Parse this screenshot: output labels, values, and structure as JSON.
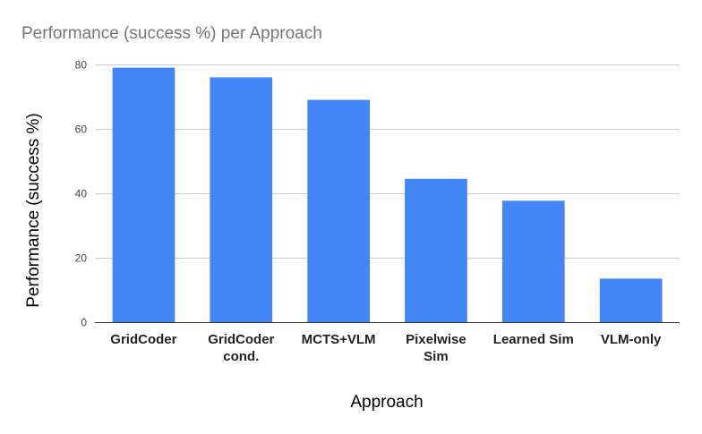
{
  "chart_data": {
    "type": "bar",
    "title": "Performance (success %) per Approach",
    "xlabel": "Approach",
    "ylabel": "Performance (success %)",
    "categories": [
      [
        "GridCoder"
      ],
      [
        "GridCoder",
        "cond."
      ],
      [
        "MCTS+VLM"
      ],
      [
        "Pixelwise",
        "Sim"
      ],
      [
        "Learned Sim"
      ],
      [
        "VLM-only"
      ]
    ],
    "values": [
      79,
      76,
      69,
      44.5,
      37.7,
      13.5
    ],
    "ylim": [
      0,
      80
    ],
    "yticks": [
      0,
      20,
      40,
      60,
      80
    ],
    "grid": true,
    "legend": "none",
    "bar_color": "#4285f4"
  }
}
